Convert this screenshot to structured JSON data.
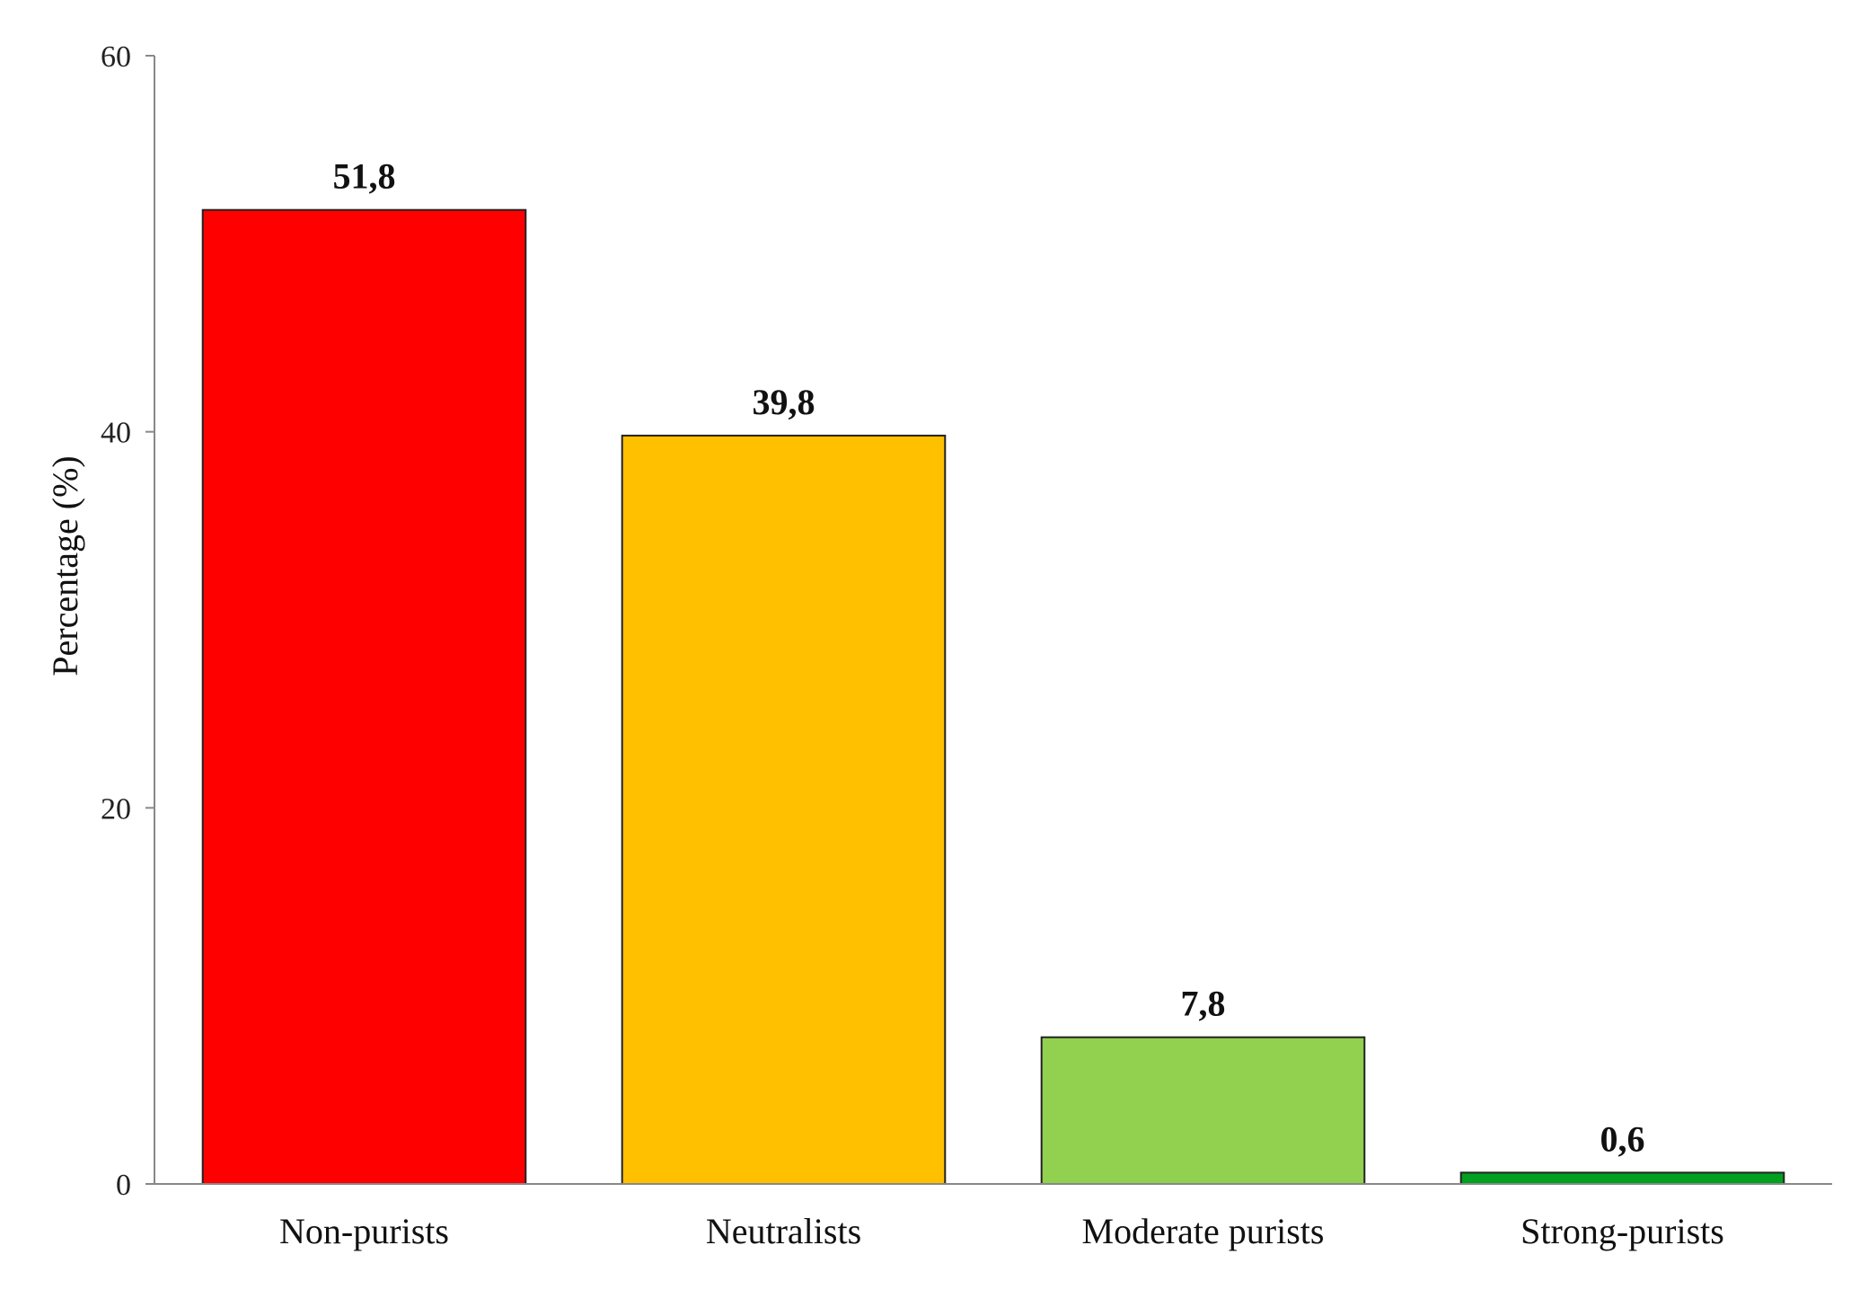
{
  "chart_data": {
    "type": "bar",
    "title": "",
    "xlabel": "",
    "ylabel": "Percentage (%)",
    "ylim": [
      0,
      60
    ],
    "yticks": [
      0,
      20,
      40,
      60
    ],
    "grid": false,
    "legend": "none",
    "categories": [
      "Non-purists",
      "Neutralists",
      "Moderate purists",
      "Strong-purists"
    ],
    "values": [
      51.8,
      39.8,
      7.8,
      0.6
    ],
    "value_labels": [
      "51,8",
      "39,8",
      "7,8",
      "0,6"
    ],
    "colors": [
      "#ff0000",
      "#ffc000",
      "#92d050",
      "#00a020"
    ],
    "axis_color": "#888888",
    "bar_edge_color": "#222222"
  }
}
